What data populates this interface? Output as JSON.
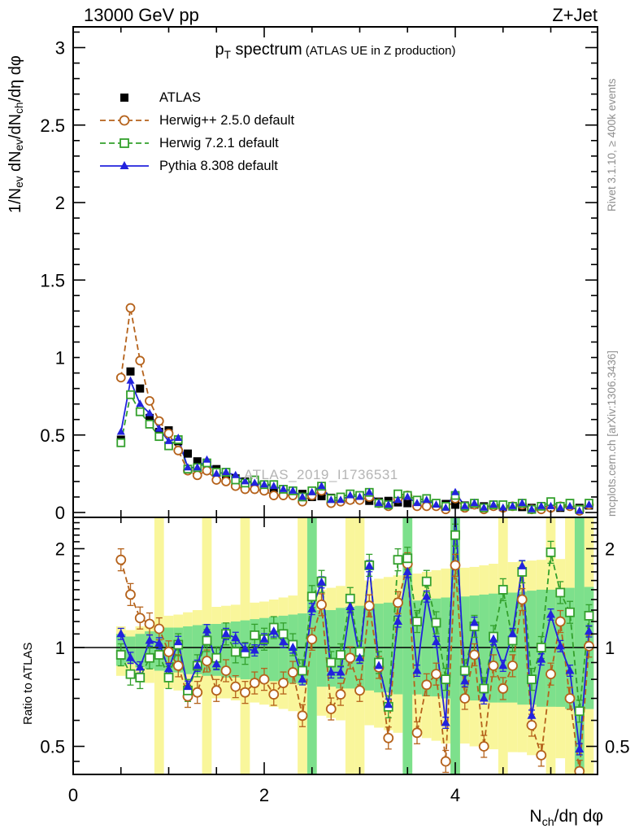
{
  "header": {
    "left": "13000 GeV pp",
    "right": "Z+Jet"
  },
  "title": {
    "p": "p",
    "p_sub": "T",
    "rest": " spectrum",
    "paren": "(ATLAS UE in Z production)"
  },
  "legend": {
    "items": [
      {
        "label": "ATLAS"
      },
      {
        "label": "Herwig++ 2.5.0 default"
      },
      {
        "label": "Herwig 7.2.1 default"
      },
      {
        "label": "Pythia 8.308 default"
      }
    ]
  },
  "watermark": "ATLAS_2019_I1736531",
  "side_notes": {
    "top": "Rivet 3.1.10, ≥ 400k events",
    "bottom": "mcplots.cern.ch [arXiv:1306.3436]"
  },
  "axis": {
    "main_ylabel": {
      "p1": "1/N",
      "s1": "ev",
      "p2": " dN",
      "s2": "ev",
      "p3": "/dN",
      "s3": "ch",
      "p4": "/dη dφ"
    },
    "xlabel": {
      "p1": "N",
      "s1": "ch",
      "p2": "/dη dφ"
    },
    "ratio_ylabel": "Ratio to ATLAS"
  },
  "chart_data": [
    {
      "id": "main",
      "type": "line",
      "title": "p_T spectrum (ATLAS UE in Z production)",
      "xlabel": "N_ch/dη dφ",
      "ylabel": "1/N_ev dN_ev/dN_ch/dη dφ",
      "xlim": [
        0,
        5.49
      ],
      "ylim": [
        0,
        3.13
      ],
      "grid": false,
      "legend_position": "upper-left",
      "yticks": [
        0,
        0.5,
        1,
        1.5,
        2,
        2.5,
        3
      ],
      "ytick_labels": [
        "0",
        "0.5",
        "1",
        "1.5",
        "2",
        "2.5",
        "3"
      ],
      "ytick_minor_step": 0.1,
      "xticks_minor_step": 0.5,
      "xticks_major": [
        2,
        4
      ],
      "x": [
        0.5,
        0.6,
        0.7,
        0.8,
        0.9,
        1.0,
        1.1,
        1.2,
        1.3,
        1.4,
        1.5,
        1.6,
        1.7,
        1.8,
        1.9,
        2.0,
        2.1,
        2.2,
        2.3,
        2.4,
        2.5,
        2.6,
        2.7,
        2.8,
        2.9,
        3.0,
        3.1,
        3.2,
        3.3,
        3.4,
        3.5,
        3.6,
        3.7,
        3.8,
        3.9,
        4.0,
        4.1,
        4.2,
        4.3,
        4.4,
        4.5,
        4.6,
        4.7,
        4.8,
        4.9,
        5.0,
        5.1,
        5.2,
        5.3,
        5.4
      ],
      "series": [
        {
          "name": "ATLAS",
          "marker": "filled-square",
          "line": "none",
          "color": "#000000",
          "values": [
            0.47,
            0.91,
            0.8,
            0.61,
            0.52,
            0.53,
            0.46,
            0.38,
            0.33,
            0.3,
            0.28,
            0.24,
            0.22,
            0.2,
            0.19,
            0.17,
            0.155,
            0.14,
            0.135,
            0.12,
            0.1,
            0.105,
            0.095,
            0.1,
            0.085,
            0.11,
            0.075,
            0.07,
            0.075,
            0.065,
            0.06,
            0.07,
            0.055,
            0.05,
            0.055,
            0.05,
            0.045,
            0.05,
            0.04,
            0.045,
            0.035,
            0.04,
            0.035,
            0.03,
            0.04,
            0.035,
            0.03,
            0.05,
            0.03,
            0.045
          ]
        },
        {
          "name": "Herwig++ 2.5.0 default",
          "marker": "open-circle",
          "line": "dashed",
          "color": "#b5621b",
          "values": [
            0.87,
            1.32,
            0.98,
            0.72,
            0.59,
            0.51,
            0.4,
            0.27,
            0.24,
            0.27,
            0.21,
            0.2,
            0.17,
            0.15,
            0.15,
            0.14,
            0.11,
            0.11,
            0.11,
            0.07,
            0.11,
            0.14,
            0.06,
            0.07,
            0.08,
            0.08,
            0.1,
            0.06,
            0.04,
            0.09,
            0.11,
            0.04,
            0.04,
            0.04,
            0.02,
            0.09,
            0.03,
            0.05,
            0.02,
            0.04,
            0.03,
            0.04,
            0.05,
            0.02,
            0.02,
            0.03,
            0.04,
            0.04,
            0.01,
            0.05
          ]
        },
        {
          "name": "Herwig 7.2.1 default",
          "marker": "open-square",
          "line": "dashed",
          "color": "#33a02c",
          "values": [
            0.45,
            0.76,
            0.65,
            0.57,
            0.49,
            0.43,
            0.47,
            0.28,
            0.29,
            0.32,
            0.26,
            0.26,
            0.21,
            0.19,
            0.21,
            0.18,
            0.18,
            0.15,
            0.14,
            0.1,
            0.14,
            0.17,
            0.09,
            0.1,
            0.12,
            0.11,
            0.13,
            0.06,
            0.05,
            0.12,
            0.11,
            0.08,
            0.09,
            0.06,
            0.04,
            0.11,
            0.04,
            0.06,
            0.03,
            0.05,
            0.05,
            0.04,
            0.06,
            0.02,
            0.04,
            0.07,
            0.04,
            0.06,
            0.02,
            0.06
          ]
        },
        {
          "name": "Pythia 8.308 default",
          "marker": "filled-triangle",
          "line": "solid",
          "color": "#2222dd",
          "values": [
            0.52,
            0.85,
            0.7,
            0.64,
            0.54,
            0.46,
            0.48,
            0.29,
            0.29,
            0.34,
            0.25,
            0.26,
            0.24,
            0.2,
            0.19,
            0.18,
            0.17,
            0.15,
            0.14,
            0.1,
            0.13,
            0.17,
            0.08,
            0.08,
            0.11,
            0.1,
            0.13,
            0.06,
            0.05,
            0.08,
            0.1,
            0.06,
            0.08,
            0.05,
            0.03,
            0.13,
            0.04,
            0.06,
            0.03,
            0.05,
            0.03,
            0.04,
            0.06,
            0.02,
            0.04,
            0.04,
            0.03,
            0.04,
            0.01,
            0.05
          ]
        }
      ]
    },
    {
      "id": "ratio",
      "type": "line",
      "ylabel": "Ratio to ATLAS",
      "yscale": "log2",
      "ylim": [
        0.41,
        2.49
      ],
      "xlim": [
        0,
        5.49
      ],
      "reference_line": 1,
      "yticks": [
        0.5,
        1,
        2
      ],
      "ytick_labels": [
        "0.5",
        "1",
        "2"
      ],
      "yticks_minor": [
        0.45,
        0.6,
        0.7,
        0.8,
        0.9,
        1.1,
        1.2,
        1.3,
        1.4,
        1.5,
        1.6,
        1.7,
        1.8,
        1.9,
        2.1,
        2.2,
        2.3,
        2.4
      ],
      "xticks": [
        0,
        2,
        4
      ],
      "xtick_labels": [
        "0",
        "2",
        "4"
      ],
      "xticks_minor_step": 0.5,
      "band_colors": {
        "inner": "#7de08c",
        "outer": "#f9f69b"
      },
      "x": [
        0.5,
        0.6,
        0.7,
        0.8,
        0.9,
        1.0,
        1.1,
        1.2,
        1.3,
        1.4,
        1.5,
        1.6,
        1.7,
        1.8,
        1.9,
        2.0,
        2.1,
        2.2,
        2.3,
        2.4,
        2.5,
        2.6,
        2.7,
        2.8,
        2.9,
        3.0,
        3.1,
        3.2,
        3.3,
        3.4,
        3.5,
        3.6,
        3.7,
        3.8,
        3.9,
        4.0,
        4.1,
        4.2,
        4.3,
        4.4,
        4.5,
        4.6,
        4.7,
        4.8,
        4.9,
        5.0,
        5.1,
        5.2,
        5.3,
        5.4
      ],
      "bands": {
        "yellow": [
          [
            0.82,
            1.16
          ],
          [
            0.84,
            1.13
          ],
          [
            0.8,
            1.16
          ],
          [
            0.78,
            1.2
          ],
          [
            0.41,
            2.49
          ],
          [
            0.75,
            1.25
          ],
          [
            0.74,
            1.26
          ],
          [
            0.73,
            1.28
          ],
          [
            0.72,
            1.3
          ],
          [
            0.41,
            2.49
          ],
          [
            0.7,
            1.33
          ],
          [
            0.7,
            1.34
          ],
          [
            0.69,
            1.35
          ],
          [
            0.41,
            2.49
          ],
          [
            0.68,
            1.37
          ],
          [
            0.67,
            1.38
          ],
          [
            0.66,
            1.4
          ],
          [
            0.65,
            1.42
          ],
          [
            0.64,
            1.44
          ],
          [
            0.41,
            2.49
          ],
          [
            0.41,
            2.49
          ],
          [
            0.62,
            1.5
          ],
          [
            0.61,
            1.52
          ],
          [
            0.6,
            1.54
          ],
          [
            0.41,
            2.49
          ],
          [
            0.41,
            2.49
          ],
          [
            0.58,
            1.6
          ],
          [
            0.57,
            1.62
          ],
          [
            0.56,
            1.64
          ],
          [
            0.55,
            1.66
          ],
          [
            0.41,
            2.49
          ],
          [
            0.54,
            1.68
          ],
          [
            0.53,
            1.7
          ],
          [
            0.52,
            1.72
          ],
          [
            0.51,
            1.74
          ],
          [
            0.41,
            2.49
          ],
          [
            0.51,
            1.75
          ],
          [
            0.5,
            1.76
          ],
          [
            0.5,
            1.78
          ],
          [
            0.49,
            1.8
          ],
          [
            0.41,
            2.49
          ],
          [
            0.48,
            1.82
          ],
          [
            0.48,
            1.83
          ],
          [
            0.47,
            1.84
          ],
          [
            0.47,
            1.85
          ],
          [
            0.41,
            2.49
          ],
          [
            0.46,
            1.86
          ],
          [
            0.41,
            2.49
          ],
          [
            0.41,
            2.49
          ],
          [
            0.41,
            2.49
          ]
        ],
        "green": [
          [
            0.88,
            1.1
          ],
          [
            0.9,
            1.08
          ],
          [
            0.87,
            1.1
          ],
          [
            0.86,
            1.12
          ],
          [
            0.85,
            1.13
          ],
          [
            0.84,
            1.15
          ],
          [
            0.84,
            1.15
          ],
          [
            0.83,
            1.16
          ],
          [
            0.83,
            1.17
          ],
          [
            0.82,
            1.18
          ],
          [
            0.82,
            1.18
          ],
          [
            0.81,
            1.19
          ],
          [
            0.81,
            1.2
          ],
          [
            0.8,
            1.21
          ],
          [
            0.8,
            1.22
          ],
          [
            0.79,
            1.23
          ],
          [
            0.79,
            1.24
          ],
          [
            0.78,
            1.25
          ],
          [
            0.78,
            1.26
          ],
          [
            0.77,
            1.27
          ],
          [
            0.41,
            2.49
          ],
          [
            0.76,
            1.3
          ],
          [
            0.76,
            1.3
          ],
          [
            0.75,
            1.32
          ],
          [
            0.75,
            1.33
          ],
          [
            0.74,
            1.34
          ],
          [
            0.74,
            1.35
          ],
          [
            0.73,
            1.36
          ],
          [
            0.73,
            1.37
          ],
          [
            0.72,
            1.38
          ],
          [
            0.41,
            2.49
          ],
          [
            0.72,
            1.39
          ],
          [
            0.71,
            1.4
          ],
          [
            0.71,
            1.41
          ],
          [
            0.7,
            1.42
          ],
          [
            0.41,
            2.49
          ],
          [
            0.7,
            1.43
          ],
          [
            0.69,
            1.44
          ],
          [
            0.69,
            1.45
          ],
          [
            0.68,
            1.46
          ],
          [
            0.68,
            1.47
          ],
          [
            0.68,
            1.47
          ],
          [
            0.67,
            1.48
          ],
          [
            0.67,
            1.49
          ],
          [
            0.66,
            1.5
          ],
          [
            0.66,
            1.5
          ],
          [
            0.66,
            1.51
          ],
          [
            0.65,
            1.52
          ],
          [
            0.41,
            2.49
          ],
          [
            0.65,
            1.53
          ]
        ]
      },
      "series": [
        {
          "name": "Herwig++ 2.5.0 default",
          "marker": "open-circle",
          "line": "dashed",
          "color": "#b5621b",
          "values": [
            1.85,
            1.45,
            1.23,
            1.18,
            1.14,
            0.97,
            0.88,
            0.71,
            0.73,
            0.91,
            0.74,
            0.85,
            0.76,
            0.73,
            0.78,
            0.8,
            0.72,
            0.78,
            0.84,
            0.62,
            1.06,
            1.35,
            0.65,
            0.72,
            0.93,
            0.74,
            1.34,
            0.87,
            0.53,
            1.37,
            1.8,
            0.55,
            0.77,
            0.83,
            0.45,
            1.78,
            0.7,
            0.95,
            0.5,
            0.88,
            0.75,
            0.88,
            1.4,
            0.58,
            0.47,
            0.83,
            1.2,
            0.7,
            0.42,
            1.01
          ]
        },
        {
          "name": "Herwig 7.2.1 default",
          "marker": "open-square",
          "line": "dashed",
          "color": "#33a02c",
          "values": [
            0.95,
            0.83,
            0.81,
            0.93,
            0.95,
            0.81,
            1.02,
            0.74,
            0.88,
            1.05,
            0.93,
            1.1,
            0.97,
            0.96,
            1.09,
            1.06,
            1.15,
            1.1,
            1.02,
            0.85,
            1.43,
            1.59,
            0.9,
            0.95,
            1.41,
            0.97,
            1.78,
            0.9,
            0.66,
            1.85,
            1.87,
            1.2,
            1.59,
            1.19,
            0.8,
            2.2,
            0.85,
            1.16,
            0.75,
            1.08,
            1.5,
            1.05,
            1.7,
            0.8,
            1.0,
            1.95,
            1.47,
            1.28,
            0.64,
            1.25
          ]
        },
        {
          "name": "Pythia 8.308 default",
          "marker": "filled-triangle",
          "line": "solid",
          "color": "#2222dd",
          "values": [
            1.1,
            0.93,
            0.87,
            1.05,
            1.03,
            0.86,
            1.04,
            0.76,
            0.88,
            1.13,
            0.89,
            1.1,
            1.07,
            0.99,
            0.98,
            1.06,
            1.12,
            1.04,
            1.0,
            0.8,
            1.31,
            1.58,
            0.84,
            0.84,
            1.33,
            0.93,
            1.77,
            0.88,
            0.67,
            1.2,
            1.7,
            0.85,
            1.43,
            1.04,
            0.59,
            2.6,
            0.79,
            1.19,
            0.7,
            1.06,
            0.88,
            1.1,
            1.77,
            0.62,
            0.92,
            1.26,
            1.01,
            0.85,
            0.49,
            1.12
          ]
        }
      ]
    }
  ]
}
